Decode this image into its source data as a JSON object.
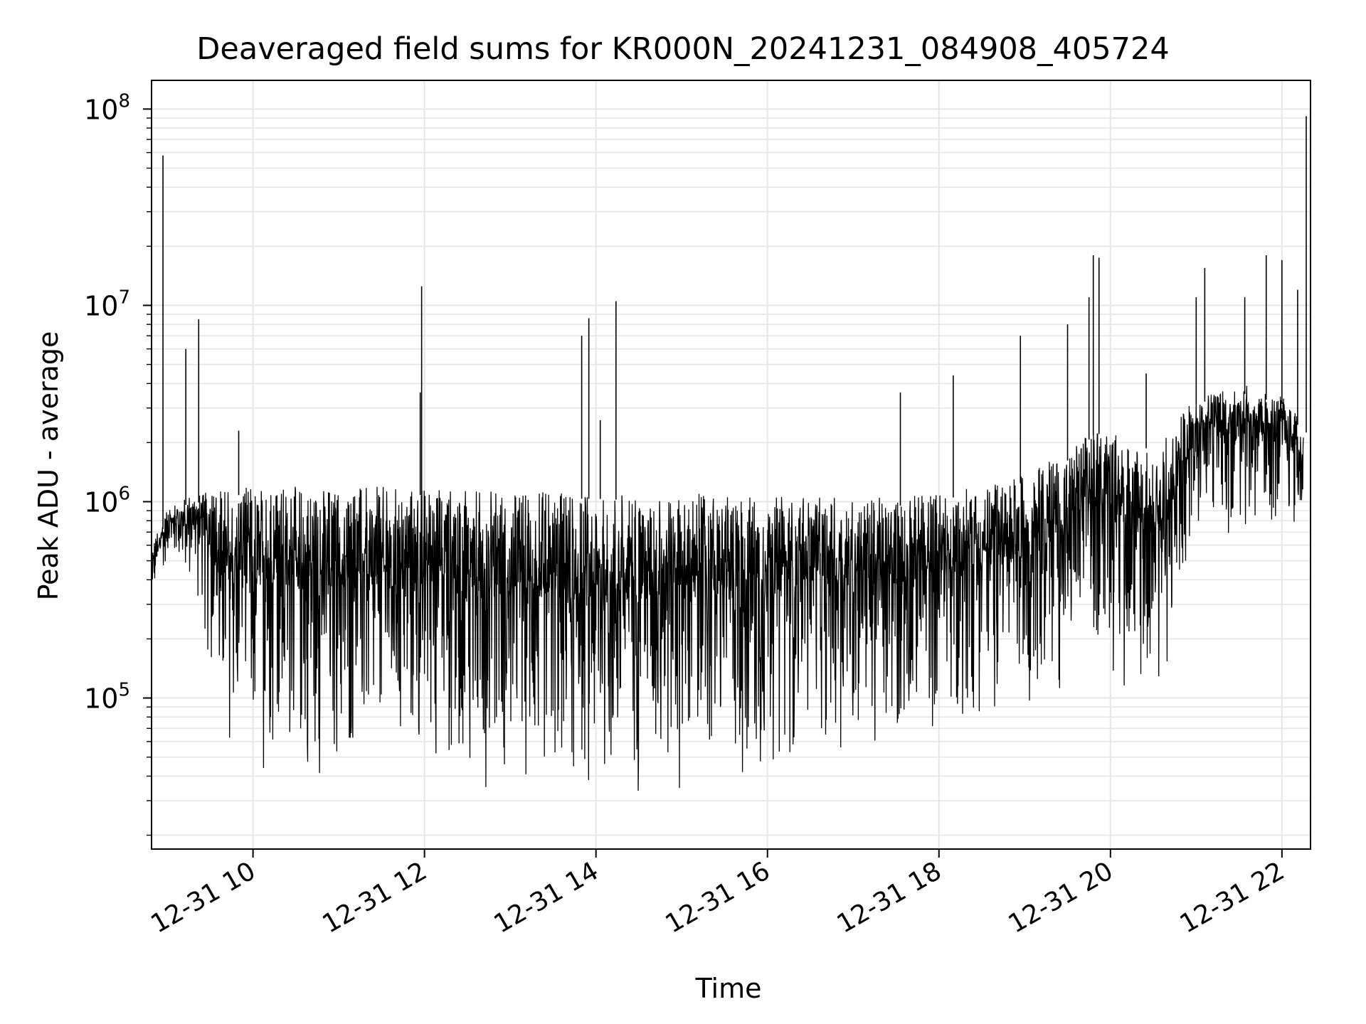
{
  "chart_data": {
    "type": "line",
    "title": "Deaveraged field sums for KR000N_20241231_084908_405724",
    "xlabel": "Time",
    "ylabel": "Peak ADU - average",
    "yscale": "log",
    "grid": true,
    "line_color": "#000000",
    "grid_color": "#e6e6e6",
    "xlim": [
      "2024-12-31 08:49",
      "2024-12-31 22:20"
    ],
    "ylim": [
      17000,
      140000000
    ],
    "x_ticks": [
      {
        "t": "2024-12-31 10:00",
        "label": "12-31 10"
      },
      {
        "t": "2024-12-31 12:00",
        "label": "12-31 12"
      },
      {
        "t": "2024-12-31 14:00",
        "label": "12-31 14"
      },
      {
        "t": "2024-12-31 16:00",
        "label": "12-31 16"
      },
      {
        "t": "2024-12-31 18:00",
        "label": "12-31 18"
      },
      {
        "t": "2024-12-31 20:00",
        "label": "12-31 20"
      },
      {
        "t": "2024-12-31 22:00",
        "label": "12-31 22"
      }
    ],
    "y_ticks": [
      {
        "value": 100000,
        "base": "10",
        "exp": "5"
      },
      {
        "value": 1000000,
        "base": "10",
        "exp": "6"
      },
      {
        "value": 10000000,
        "base": "10",
        "exp": "7"
      },
      {
        "value": 100000000,
        "base": "10",
        "exp": "8"
      }
    ],
    "envelope": {
      "x": [
        "2024-12-31 08:49",
        "2024-12-31 09:00",
        "2024-12-31 09:15",
        "2024-12-31 09:25",
        "2024-12-31 09:35",
        "2024-12-31 10:00",
        "2024-12-31 11:00",
        "2024-12-31 12:00",
        "2024-12-31 13:00",
        "2024-12-31 14:00",
        "2024-12-31 15:00",
        "2024-12-31 15:50",
        "2024-12-31 16:30",
        "2024-12-31 17:00",
        "2024-12-31 17:30",
        "2024-12-31 18:00",
        "2024-12-31 18:30",
        "2024-12-31 19:00",
        "2024-12-31 19:30",
        "2024-12-31 19:50",
        "2024-12-31 20:15",
        "2024-12-31 20:40",
        "2024-12-31 21:00",
        "2024-12-31 21:30",
        "2024-12-31 22:00",
        "2024-12-31 22:15"
      ],
      "upper": [
        600000,
        900000,
        1100000,
        1100000,
        1200000,
        1200000,
        1200000,
        1200000,
        1150000,
        1150000,
        1100000,
        1100000,
        1050000,
        1050000,
        1050000,
        1150000,
        1200000,
        1400000,
        1800000,
        2500000,
        2000000,
        2200000,
        3500000,
        4000000,
        3500000,
        2500000
      ],
      "lower": [
        300000,
        500000,
        400000,
        200000,
        60000,
        40000,
        35000,
        40000,
        32000,
        30000,
        30000,
        30000,
        60000,
        50000,
        45000,
        60000,
        70000,
        80000,
        100000,
        150000,
        80000,
        100000,
        800000,
        600000,
        700000,
        600000
      ]
    },
    "spikes": [
      {
        "x": "2024-12-31 08:57",
        "y": 58000000
      },
      {
        "x": "2024-12-31 09:13",
        "y": 6000000
      },
      {
        "x": "2024-12-31 09:22",
        "y": 8500000
      },
      {
        "x": "2024-12-31 09:50",
        "y": 2300000
      },
      {
        "x": "2024-12-31 11:57",
        "y": 3600000
      },
      {
        "x": "2024-12-31 11:58",
        "y": 12500000
      },
      {
        "x": "2024-12-31 13:50",
        "y": 7000000
      },
      {
        "x": "2024-12-31 13:55",
        "y": 8600000
      },
      {
        "x": "2024-12-31 14:03",
        "y": 2600000
      },
      {
        "x": "2024-12-31 14:14",
        "y": 10500000
      },
      {
        "x": "2024-12-31 17:33",
        "y": 3600000
      },
      {
        "x": "2024-12-31 18:10",
        "y": 4400000
      },
      {
        "x": "2024-12-31 18:57",
        "y": 7000000
      },
      {
        "x": "2024-12-31 19:30",
        "y": 8000000
      },
      {
        "x": "2024-12-31 19:45",
        "y": 11000000
      },
      {
        "x": "2024-12-31 19:48",
        "y": 18000000
      },
      {
        "x": "2024-12-31 19:52",
        "y": 17500000
      },
      {
        "x": "2024-12-31 20:25",
        "y": 4500000
      },
      {
        "x": "2024-12-31 21:00",
        "y": 11000000
      },
      {
        "x": "2024-12-31 21:06",
        "y": 15500000
      },
      {
        "x": "2024-12-31 21:34",
        "y": 11000000
      },
      {
        "x": "2024-12-31 21:49",
        "y": 18000000
      },
      {
        "x": "2024-12-31 22:00",
        "y": 17000000
      },
      {
        "x": "2024-12-31 22:11",
        "y": 12000000
      },
      {
        "x": "2024-12-31 22:17",
        "y": 92000000
      }
    ]
  }
}
